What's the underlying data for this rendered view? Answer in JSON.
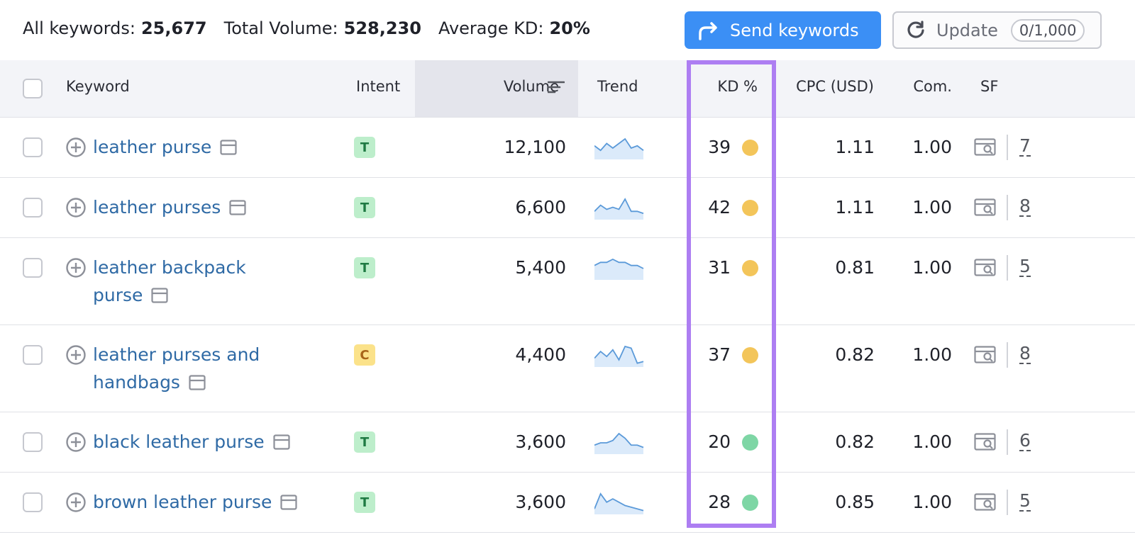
{
  "summary": [
    {
      "label": "All keywords:",
      "value": "25,677"
    },
    {
      "label": "Total Volume:",
      "value": "528,230"
    },
    {
      "label": "Average KD:",
      "value": "20%"
    }
  ],
  "buttons": {
    "send": "Send keywords",
    "update": "Update",
    "update_count": "0/1,000"
  },
  "table": {
    "columns": [
      "Keyword",
      "Intent",
      "Volume",
      "Trend",
      "KD %",
      "CPC (USD)",
      "Com.",
      "SF"
    ],
    "rows": [
      {
        "keyword": "leather purse",
        "intent": "T",
        "volume": "12,100",
        "kd": "39",
        "kd_color": "#f3c55a",
        "cpc": "1.11",
        "com": "1.00",
        "sf": "7",
        "trend": [
          5,
          3,
          6,
          4,
          6,
          8,
          4,
          5,
          3
        ]
      },
      {
        "keyword": "leather purses",
        "intent": "T",
        "volume": "6,600",
        "kd": "42",
        "kd_color": "#f3c55a",
        "cpc": "1.11",
        "com": "1.00",
        "sf": "8",
        "trend": [
          3,
          6,
          4,
          5,
          4,
          9,
          3,
          3,
          2
        ]
      },
      {
        "keyword": "leather backpack purse",
        "intent": "T",
        "volume": "5,400",
        "kd": "31",
        "kd_color": "#f3c55a",
        "cpc": "0.81",
        "com": "1.00",
        "sf": "5",
        "trend": [
          4,
          5,
          5,
          6,
          5,
          5,
          4,
          4,
          3
        ]
      },
      {
        "keyword": "leather purses and handbags",
        "intent": "C",
        "volume": "4,400",
        "kd": "37",
        "kd_color": "#f3c55a",
        "cpc": "0.82",
        "com": "1.00",
        "sf": "8",
        "trend": [
          4,
          8,
          5,
          9,
          3,
          11,
          10,
          1,
          2
        ]
      },
      {
        "keyword": "black leather purse",
        "intent": "T",
        "volume": "3,600",
        "kd": "20",
        "kd_color": "#7ed6a5",
        "cpc": "0.82",
        "com": "1.00",
        "sf": "6",
        "trend": [
          3,
          4,
          4,
          5,
          8,
          6,
          3,
          3,
          2
        ]
      },
      {
        "keyword": "brown leather purse",
        "intent": "T",
        "volume": "3,600",
        "kd": "28",
        "kd_color": "#7ed6a5",
        "cpc": "0.85",
        "com": "1.00",
        "sf": "5",
        "trend": [
          2,
          11,
          6,
          8,
          6,
          4,
          3,
          2,
          1
        ]
      }
    ]
  }
}
